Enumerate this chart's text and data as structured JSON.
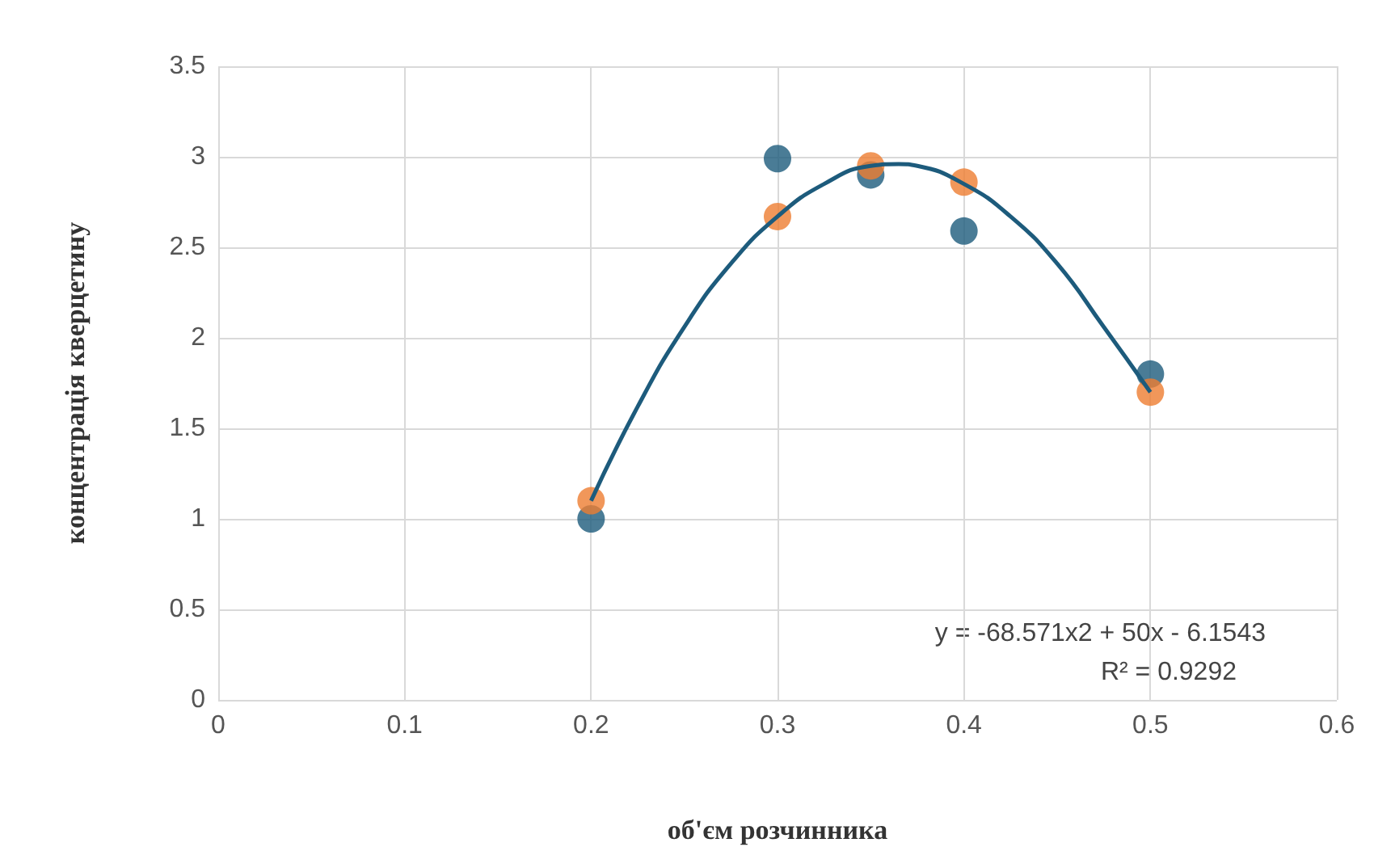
{
  "chart_data": {
    "type": "scatter",
    "xlabel": "об'єм розчинника",
    "ylabel": "концентрація кверцетину",
    "x": [
      0.2,
      0.3,
      0.35,
      0.4,
      0.5
    ],
    "series": [
      {
        "color": "#1d5b7c",
        "values": [
          1.0,
          2.99,
          2.9,
          2.59,
          1.8
        ]
      },
      {
        "color": "#ed7d31",
        "values": [
          1.1,
          2.67,
          2.95,
          2.86,
          1.7
        ]
      },
      {
        "type": "line",
        "color": "#1d5b7c",
        "x": [
          0.2,
          0.225,
          0.25,
          0.275,
          0.3,
          0.325,
          0.35,
          0.365,
          0.375,
          0.4,
          0.425,
          0.45,
          0.475,
          0.5
        ],
        "values": [
          1.1,
          1.62,
          2.06,
          2.41,
          2.67,
          2.85,
          2.95,
          2.96,
          2.95,
          2.85,
          2.67,
          2.41,
          2.06,
          1.7
        ],
        "marker": "none"
      }
    ],
    "marker": "circle",
    "xlim": [
      0,
      0.6
    ],
    "xticks": [
      0,
      0.1,
      0.2,
      0.3,
      0.4,
      0.5,
      0.6
    ],
    "ylim": [
      0,
      3.5
    ],
    "yticks": [
      0,
      0.5,
      1,
      1.5,
      2,
      2.5,
      3,
      3.5
    ],
    "grid": true,
    "annotations": [
      "y = -68.571x2 + 50x - 6.1543",
      "R² = 0.9292"
    ]
  }
}
